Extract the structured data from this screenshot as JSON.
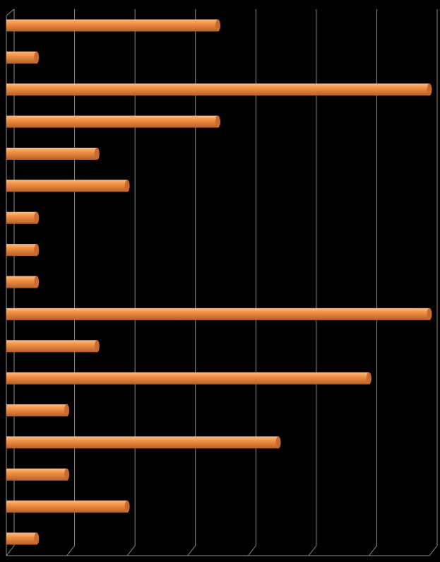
{
  "chart_data": {
    "type": "bar",
    "orientation": "horizontal",
    "style": "3d-cylinder",
    "categories": [
      "",
      "",
      "",
      "",
      "",
      "",
      "",
      "",
      "",
      "",
      "",
      "",
      "",
      "",
      "",
      "",
      ""
    ],
    "values": [
      7,
      1,
      14,
      7,
      3,
      4,
      1,
      1,
      1,
      14,
      3,
      12,
      2,
      9,
      2,
      4,
      1
    ],
    "xlim": [
      0,
      14
    ],
    "x_gridline_step": 2,
    "grid": true,
    "legend": "none",
    "title": "",
    "xlabel": "",
    "ylabel": "",
    "colors": {
      "background": "#000000",
      "bar": "#F79646",
      "bar_highlight": "#FBC08E",
      "bar_shadow": "#B8602A",
      "bar_end_cap": "#C96A30",
      "gridline": "#8C8C8C"
    }
  }
}
